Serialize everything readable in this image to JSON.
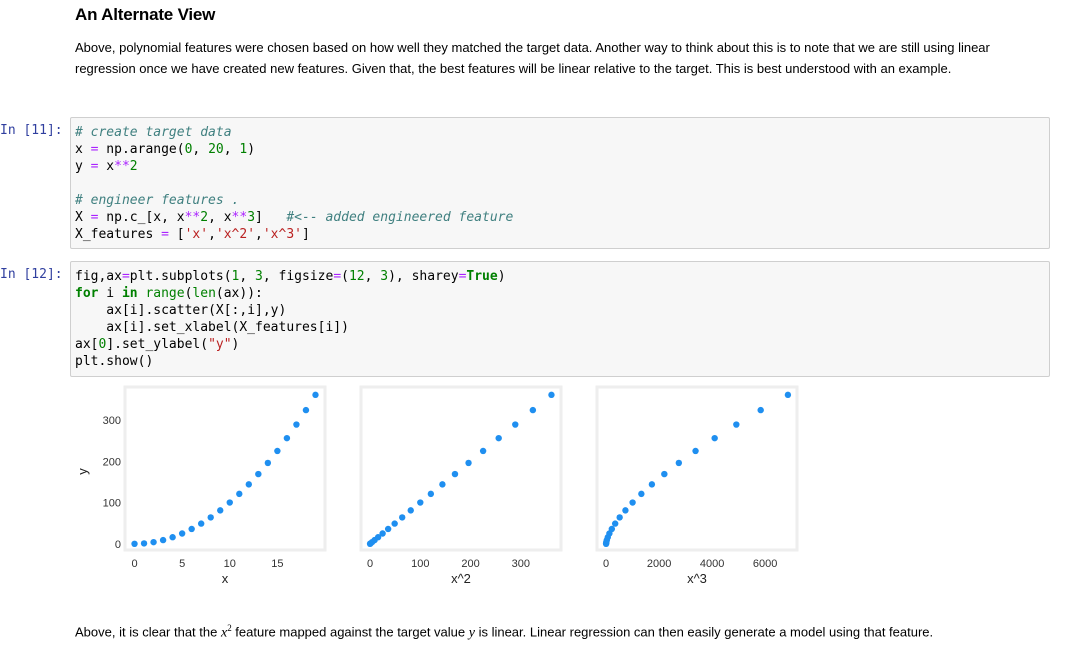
{
  "heading": "An Alternate View",
  "intro_paragraph": "Above, polynomial features were chosen based on how well they matched the target data. Another way to think about this is to note that we are still using linear regression once we have created new features. Given that, the best features will be linear relative to the target. This is best understood with an example.",
  "cells": [
    {
      "prompt": "In [11]:",
      "lines": [
        [
          {
            "t": "# create target data",
            "c": "cm"
          }
        ],
        [
          {
            "t": "x "
          },
          {
            "t": "=",
            "c": "op"
          },
          {
            "t": " np.arange("
          },
          {
            "t": "0",
            "c": "nm"
          },
          {
            "t": ", "
          },
          {
            "t": "20",
            "c": "nm"
          },
          {
            "t": ", "
          },
          {
            "t": "1",
            "c": "nm"
          },
          {
            "t": ")"
          }
        ],
        [
          {
            "t": "y "
          },
          {
            "t": "=",
            "c": "op"
          },
          {
            "t": " x"
          },
          {
            "t": "**",
            "c": "op"
          },
          {
            "t": "2",
            "c": "nm"
          }
        ],
        [
          {
            "t": ""
          }
        ],
        [
          {
            "t": "# engineer features .",
            "c": "cm"
          }
        ],
        [
          {
            "t": "X "
          },
          {
            "t": "=",
            "c": "op"
          },
          {
            "t": " np.c_[x, x"
          },
          {
            "t": "**",
            "c": "op"
          },
          {
            "t": "2",
            "c": "nm"
          },
          {
            "t": ", x"
          },
          {
            "t": "**",
            "c": "op"
          },
          {
            "t": "3",
            "c": "nm"
          },
          {
            "t": "]   "
          },
          {
            "t": "#<-- added engineered feature",
            "c": "cm"
          }
        ],
        [
          {
            "t": "X_features "
          },
          {
            "t": "=",
            "c": "op"
          },
          {
            "t": " ["
          },
          {
            "t": "'x'",
            "c": "st"
          },
          {
            "t": ","
          },
          {
            "t": "'x^2'",
            "c": "st"
          },
          {
            "t": ","
          },
          {
            "t": "'x^3'",
            "c": "st"
          },
          {
            "t": "]"
          }
        ]
      ]
    },
    {
      "prompt": "In [12]:",
      "lines": [
        [
          {
            "t": "fig,ax"
          },
          {
            "t": "=",
            "c": "op"
          },
          {
            "t": "plt.subplots("
          },
          {
            "t": "1",
            "c": "nm"
          },
          {
            "t": ", "
          },
          {
            "t": "3",
            "c": "nm"
          },
          {
            "t": ", figsize"
          },
          {
            "t": "=",
            "c": "op"
          },
          {
            "t": "("
          },
          {
            "t": "12",
            "c": "nm"
          },
          {
            "t": ", "
          },
          {
            "t": "3",
            "c": "nm"
          },
          {
            "t": "), sharey"
          },
          {
            "t": "=",
            "c": "op"
          },
          {
            "t": "True",
            "c": "kw"
          },
          {
            "t": ")"
          }
        ],
        [
          {
            "t": "for",
            "c": "kw"
          },
          {
            "t": " i "
          },
          {
            "t": "in",
            "c": "kw"
          },
          {
            "t": " "
          },
          {
            "t": "range",
            "c": "nm"
          },
          {
            "t": "("
          },
          {
            "t": "len",
            "c": "nm"
          },
          {
            "t": "(ax)):"
          }
        ],
        [
          {
            "t": "    ax[i]."
          },
          {
            "t": "scatter(X[:,i],y)"
          }
        ],
        [
          {
            "t": "    ax[i].set_xlabel(X_features[i])"
          }
        ],
        [
          {
            "t": "ax["
          },
          {
            "t": "0",
            "c": "nm"
          },
          {
            "t": "].set_ylabel("
          },
          {
            "t": "\"y\"",
            "c": "st"
          },
          {
            "t": ")"
          }
        ],
        [
          {
            "t": "plt.show()"
          }
        ]
      ]
    }
  ],
  "colors": {
    "point": "#1f8ff0",
    "axes_bg": "#ffffff",
    "frame": "#eeeeee"
  },
  "chart_data": [
    {
      "type": "scatter",
      "xlabel": "x",
      "ylabel": "y",
      "xlim": [
        -1,
        20
      ],
      "ylim": [
        -15,
        380
      ],
      "xticks": [
        0,
        5,
        10,
        15
      ],
      "yticks": [
        0,
        100,
        200,
        300
      ],
      "x": [
        0,
        1,
        2,
        3,
        4,
        5,
        6,
        7,
        8,
        9,
        10,
        11,
        12,
        13,
        14,
        15,
        16,
        17,
        18,
        19
      ],
      "y": [
        0,
        1,
        4,
        9,
        16,
        25,
        36,
        49,
        64,
        81,
        100,
        121,
        144,
        169,
        196,
        225,
        256,
        289,
        324,
        361
      ]
    },
    {
      "type": "scatter",
      "xlabel": "x^2",
      "ylabel": "",
      "xlim": [
        -18,
        380
      ],
      "ylim": [
        -15,
        380
      ],
      "xticks": [
        0,
        100,
        200,
        300
      ],
      "yticks": [],
      "x": [
        0,
        1,
        4,
        9,
        16,
        25,
        36,
        49,
        64,
        81,
        100,
        121,
        144,
        169,
        196,
        225,
        256,
        289,
        324,
        361
      ],
      "y": [
        0,
        1,
        4,
        9,
        16,
        25,
        36,
        49,
        64,
        81,
        100,
        121,
        144,
        169,
        196,
        225,
        256,
        289,
        324,
        361
      ]
    },
    {
      "type": "scatter",
      "xlabel": "x^3",
      "ylabel": "",
      "xlim": [
        -343,
        7202
      ],
      "ylim": [
        -15,
        380
      ],
      "xticks": [
        0,
        2000,
        4000,
        6000
      ],
      "yticks": [],
      "x": [
        0,
        1,
        8,
        27,
        64,
        125,
        216,
        343,
        512,
        729,
        1000,
        1331,
        1728,
        2197,
        2744,
        3375,
        4096,
        4913,
        5832,
        6859
      ],
      "y": [
        0,
        1,
        4,
        9,
        16,
        25,
        36,
        49,
        64,
        81,
        100,
        121,
        144,
        169,
        196,
        225,
        256,
        289,
        324,
        361
      ]
    }
  ],
  "conclusion": {
    "before": "Above, it is clear that the ",
    "var_x": "x",
    "sup": "2",
    "middle": " feature mapped against the target value ",
    "var_y": "y",
    "after": " is linear. Linear regression can then easily generate a model using that feature."
  }
}
